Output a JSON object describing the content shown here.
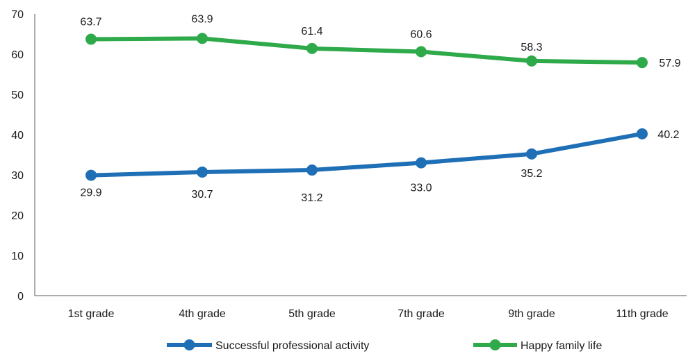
{
  "chart_data": {
    "type": "line",
    "categories": [
      "1st grade",
      "4th grade",
      "5th grade",
      "7th grade",
      "9th grade",
      "11th grade"
    ],
    "series": [
      {
        "name": "Successful professional activity",
        "color": "#1f6fb6",
        "values": [
          29.9,
          30.7,
          31.2,
          33.0,
          35.2,
          40.2
        ],
        "labels": [
          "29.9",
          "30.7",
          "31.2",
          "33.0",
          "35.2",
          "40.2"
        ]
      },
      {
        "name": "Happy family life",
        "color": "#2eaa4a",
        "values": [
          63.7,
          63.9,
          61.4,
          60.6,
          58.3,
          57.9
        ],
        "labels": [
          "63.7",
          "63.9",
          "61.4",
          "60.6",
          "58.3",
          "57.9"
        ]
      }
    ],
    "ylim": [
      0,
      70
    ],
    "yticks": [
      "0",
      "10",
      "20",
      "30",
      "40",
      "50",
      "60",
      "70"
    ],
    "grid": false,
    "legend": "bottom"
  }
}
